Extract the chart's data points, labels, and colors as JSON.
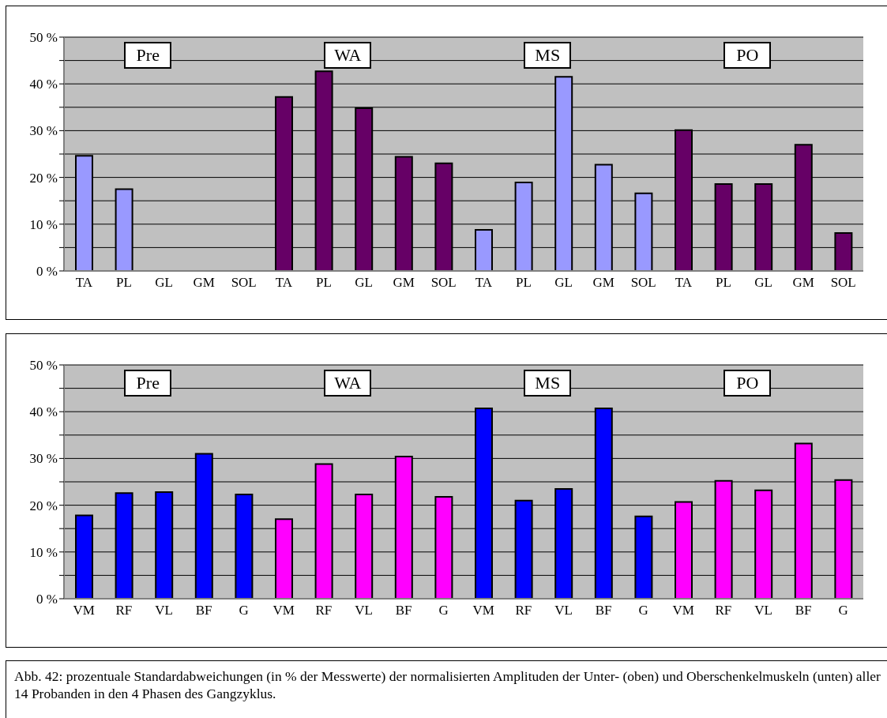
{
  "chart_data": [
    {
      "type": "bar",
      "categories": [
        "TA",
        "PL",
        "GL",
        "GM",
        "SOL",
        "TA",
        "PL",
        "GL",
        "GM",
        "SOL",
        "TA",
        "PL",
        "GL",
        "GM",
        "SOL",
        "TA",
        "PL",
        "GL",
        "GM",
        "SOL"
      ],
      "values": [
        24.6,
        17.5,
        null,
        null,
        null,
        37.2,
        42.7,
        34.8,
        24.4,
        23.0,
        8.8,
        18.9,
        41.5,
        22.7,
        16.6,
        30.1,
        18.6,
        18.6,
        27.0,
        8.1
      ],
      "colors": [
        "#9999ff",
        "#9999ff",
        "#9999ff",
        "#9999ff",
        "#9999ff",
        "#660066",
        "#660066",
        "#660066",
        "#660066",
        "#660066",
        "#9999ff",
        "#9999ff",
        "#9999ff",
        "#9999ff",
        "#9999ff",
        "#660066",
        "#660066",
        "#660066",
        "#660066",
        "#660066"
      ],
      "ylim": [
        0,
        50
      ],
      "yticks": [
        {
          "value": 0,
          "label": "0 %"
        },
        {
          "value": 5,
          "label": null
        },
        {
          "value": 10,
          "label": "10 %"
        },
        {
          "value": 15,
          "label": null
        },
        {
          "value": 20,
          "label": "20 %"
        },
        {
          "value": 25,
          "label": null
        },
        {
          "value": 30,
          "label": "30 %"
        },
        {
          "value": 35,
          "label": null
        },
        {
          "value": 40,
          "label": "40 %"
        },
        {
          "value": 45,
          "label": null
        },
        {
          "value": 50,
          "label": "50 %"
        }
      ],
      "grid": "y",
      "annotations": [
        "Pre",
        "WA",
        "MS",
        "PO"
      ]
    },
    {
      "type": "bar",
      "categories": [
        "VM",
        "RF",
        "VL",
        "BF",
        "G",
        "VM",
        "RF",
        "VL",
        "BF",
        "G",
        "VM",
        "RF",
        "VL",
        "BF",
        "G",
        "VM",
        "RF",
        "VL",
        "BF",
        "G"
      ],
      "values": [
        17.8,
        22.6,
        22.8,
        31.0,
        22.3,
        17.0,
        28.8,
        22.3,
        30.4,
        21.8,
        40.7,
        21.0,
        23.5,
        40.7,
        17.6,
        20.7,
        25.2,
        23.2,
        33.2,
        25.4
      ],
      "colors": [
        "#0000ff",
        "#0000ff",
        "#0000ff",
        "#0000ff",
        "#0000ff",
        "#ff00ff",
        "#ff00ff",
        "#ff00ff",
        "#ff00ff",
        "#ff00ff",
        "#0000ff",
        "#0000ff",
        "#0000ff",
        "#0000ff",
        "#0000ff",
        "#ff00ff",
        "#ff00ff",
        "#ff00ff",
        "#ff00ff",
        "#ff00ff"
      ],
      "ylim": [
        0,
        50
      ],
      "yticks": [
        {
          "value": 0,
          "label": "0 %"
        },
        {
          "value": 5,
          "label": null
        },
        {
          "value": 10,
          "label": "10 %"
        },
        {
          "value": 15,
          "label": null
        },
        {
          "value": 20,
          "label": "20 %"
        },
        {
          "value": 25,
          "label": null
        },
        {
          "value": 30,
          "label": "30 %"
        },
        {
          "value": 35,
          "label": null
        },
        {
          "value": 40,
          "label": "40 %"
        },
        {
          "value": 45,
          "label": null
        },
        {
          "value": 50,
          "label": "50 %"
        }
      ],
      "grid": "y",
      "annotations": [
        "Pre",
        "WA",
        "MS",
        "PO",
        "Abb. 42: prozentuale Standardabweichungen (in % der Messwerte) der normalisierten Amplituden der Unter- (oben) und Oberschenkelmuskeln (unten) aller 14 Probanden in den 4 Phasen des Gangzyklus."
      ]
    }
  ]
}
